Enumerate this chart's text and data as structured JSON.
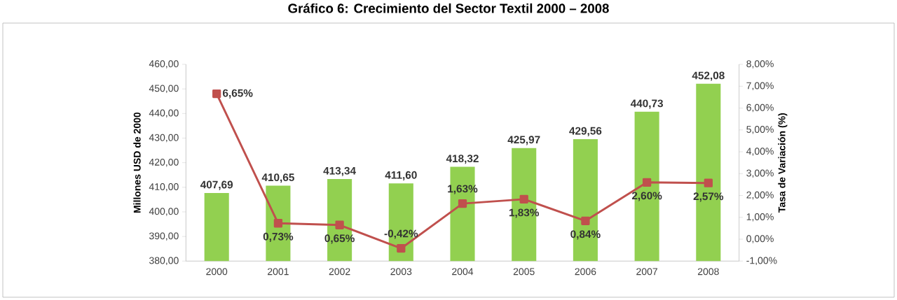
{
  "chart_data": {
    "type": "bar",
    "title": "Gráfico 6: Crecimiento del Sector Textil 2000 – 2008",
    "ylabel": "Millones   USD de 2000",
    "y2label": "Tasa de Variación (%)",
    "categories": [
      "2000",
      "2001",
      "2002",
      "2003",
      "2004",
      "2005",
      "2006",
      "2007",
      "2008"
    ],
    "series": [
      {
        "color": "#92d050",
        "values": [
          407.69,
          410.65,
          413.34,
          411.6,
          418.32,
          425.97,
          429.56,
          440.73,
          452.08
        ],
        "value_labels": [
          "407,69",
          "410,65",
          "413,34",
          "411,60",
          "418,32",
          "425,97",
          "429,56",
          "440,73",
          "452,08"
        ]
      },
      {
        "type": "line",
        "axis": "y2",
        "color": "#c0504d",
        "marker": "square",
        "values": [
          6.65,
          0.73,
          0.65,
          -0.42,
          1.63,
          1.83,
          0.84,
          2.6,
          2.57
        ],
        "value_labels": [
          "6,65%",
          "0,73%",
          "0,65%",
          "-0,42%",
          "1,63%",
          "1,83%",
          "0,84%",
          "2,60%",
          "2,57%"
        ]
      }
    ],
    "ylim": [
      380,
      460
    ],
    "yticks": [
      {
        "value": 380,
        "label": "380,00"
      },
      {
        "value": 390,
        "label": "390,00"
      },
      {
        "value": 400,
        "label": "400,00"
      },
      {
        "value": 410,
        "label": "410,00"
      },
      {
        "value": 420,
        "label": "420,00"
      },
      {
        "value": 430,
        "label": "430,00"
      },
      {
        "value": 440,
        "label": "440,00"
      },
      {
        "value": 450,
        "label": "450,00"
      },
      {
        "value": 460,
        "label": "460,00"
      }
    ],
    "y2lim": [
      -1,
      8
    ],
    "y2ticks": [
      {
        "value": -1,
        "label": "-1,00%"
      },
      {
        "value": 0,
        "label": "0,00%"
      },
      {
        "value": 1,
        "label": "1,00%"
      },
      {
        "value": 2,
        "label": "2,00%"
      },
      {
        "value": 3,
        "label": "3,00%"
      },
      {
        "value": 4,
        "label": "4,00%"
      },
      {
        "value": 5,
        "label": "5,00%"
      },
      {
        "value": 6,
        "label": "6,00%"
      },
      {
        "value": 7,
        "label": "7,00%"
      },
      {
        "value": 8,
        "label": "8,00%"
      }
    ]
  }
}
